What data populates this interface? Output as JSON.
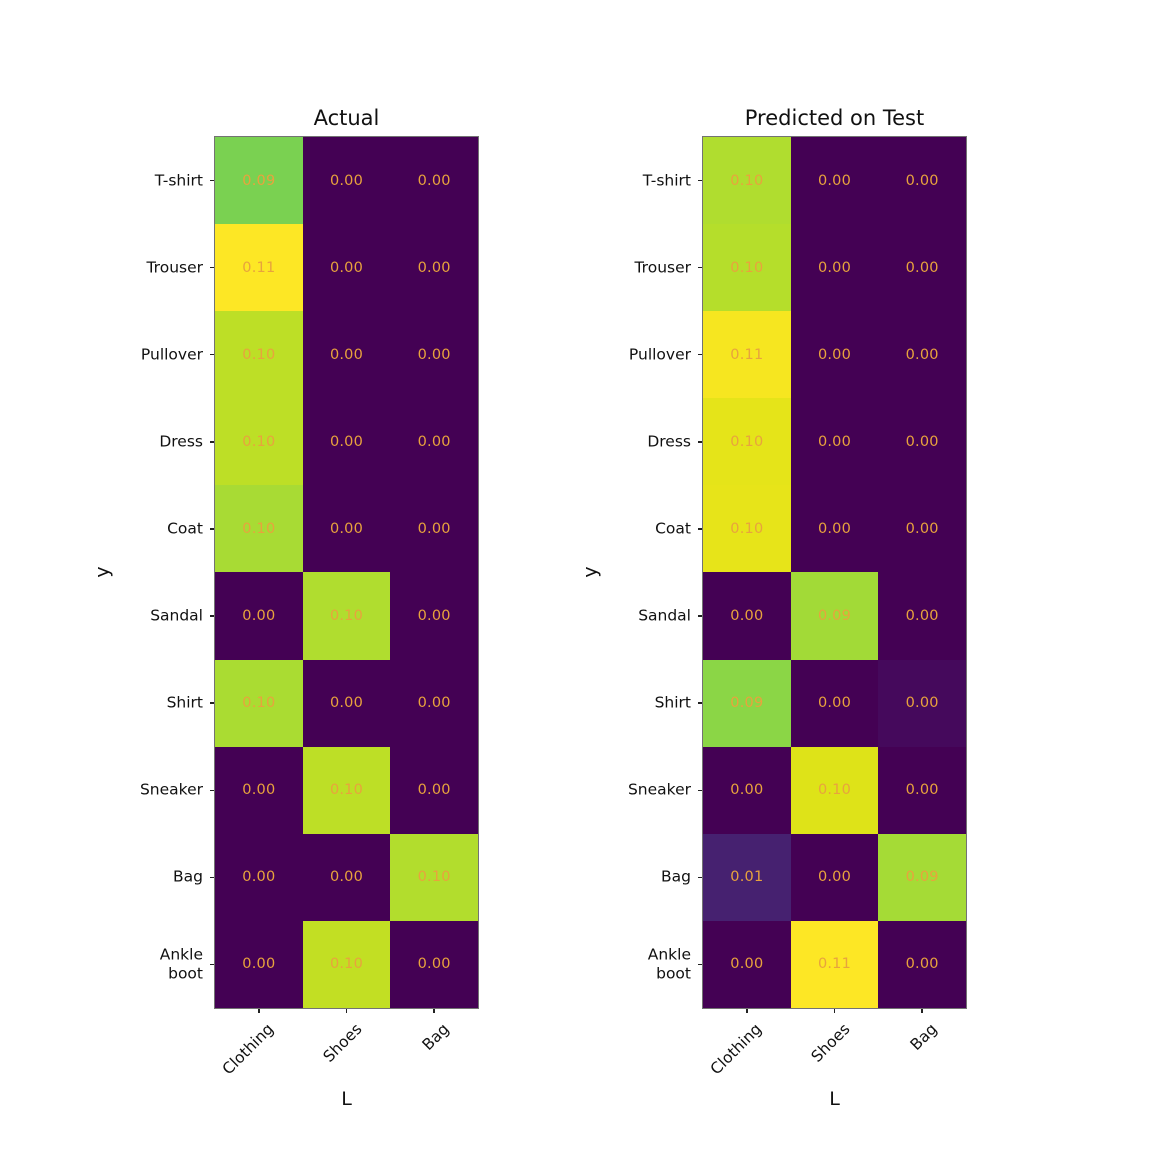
{
  "figure": {
    "background": "#ffffff"
  },
  "chart_data": [
    {
      "type": "heatmap",
      "title": "Actual",
      "xlabel": "L",
      "ylabel": "y",
      "colormap": "viridis",
      "annotation_color": "#E8A33D",
      "columns": [
        "Clothing",
        "Shoes",
        "Bag"
      ],
      "rows": [
        "T-shirt",
        "Trouser",
        "Pullover",
        "Dress",
        "Coat",
        "Sandal",
        "Shirt",
        "Sneaker",
        "Bag",
        "Ankle\nboot"
      ],
      "values": [
        [
          "0.09",
          "0.00",
          "0.00"
        ],
        [
          "0.11",
          "0.00",
          "0.00"
        ],
        [
          "0.10",
          "0.00",
          "0.00"
        ],
        [
          "0.10",
          "0.00",
          "0.00"
        ],
        [
          "0.10",
          "0.00",
          "0.00"
        ],
        [
          "0.00",
          "0.10",
          "0.00"
        ],
        [
          "0.10",
          "0.00",
          "0.00"
        ],
        [
          "0.00",
          "0.10",
          "0.00"
        ],
        [
          "0.00",
          "0.00",
          "0.10"
        ],
        [
          "0.00",
          "0.10",
          "0.00"
        ]
      ],
      "colors": [
        [
          "#7AD151",
          "#440154",
          "#440154"
        ],
        [
          "#FDE725",
          "#440154",
          "#440154"
        ],
        [
          "#BDDF26",
          "#440154",
          "#440154"
        ],
        [
          "#BDDF26",
          "#440154",
          "#440154"
        ],
        [
          "#A8DB34",
          "#440154",
          "#440154"
        ],
        [
          "#440154",
          "#B0DD2F",
          "#440154"
        ],
        [
          "#AADC32",
          "#440154",
          "#440154"
        ],
        [
          "#440154",
          "#BDDF26",
          "#440154"
        ],
        [
          "#440154",
          "#440154",
          "#B2DD2D"
        ],
        [
          "#440154",
          "#C2DF23",
          "#440154"
        ]
      ]
    },
    {
      "type": "heatmap",
      "title": "Predicted on Test",
      "xlabel": "L",
      "ylabel": "y",
      "colormap": "viridis",
      "annotation_color": "#E8A33D",
      "columns": [
        "Clothing",
        "Shoes",
        "Bag"
      ],
      "rows": [
        "T-shirt",
        "Trouser",
        "Pullover",
        "Dress",
        "Coat",
        "Sandal",
        "Shirt",
        "Sneaker",
        "Bag",
        "Ankle\nboot"
      ],
      "values": [
        [
          "0.10",
          "0.00",
          "0.00"
        ],
        [
          "0.10",
          "0.00",
          "0.00"
        ],
        [
          "0.11",
          "0.00",
          "0.00"
        ],
        [
          "0.10",
          "0.00",
          "0.00"
        ],
        [
          "0.10",
          "0.00",
          "0.00"
        ],
        [
          "0.00",
          "0.09",
          "0.00"
        ],
        [
          "0.09",
          "0.00",
          "0.00"
        ],
        [
          "0.00",
          "0.10",
          "0.00"
        ],
        [
          "0.01",
          "0.00",
          "0.09"
        ],
        [
          "0.00",
          "0.11",
          "0.00"
        ]
      ],
      "colors": [
        [
          "#B0DD2F",
          "#440154",
          "#440154"
        ],
        [
          "#B5DE2B",
          "#440154",
          "#440154"
        ],
        [
          "#F6E620",
          "#440154",
          "#440154"
        ],
        [
          "#E5E419",
          "#440154",
          "#440154"
        ],
        [
          "#E7E419",
          "#440154",
          "#440154"
        ],
        [
          "#440154",
          "#A2DA37",
          "#440154"
        ],
        [
          "#8BD646",
          "#440154",
          "#45095C"
        ],
        [
          "#440154",
          "#DEE318",
          "#440154"
        ],
        [
          "#462170",
          "#440154",
          "#A5DB36"
        ],
        [
          "#440154",
          "#FDE725",
          "#440154"
        ]
      ]
    }
  ]
}
